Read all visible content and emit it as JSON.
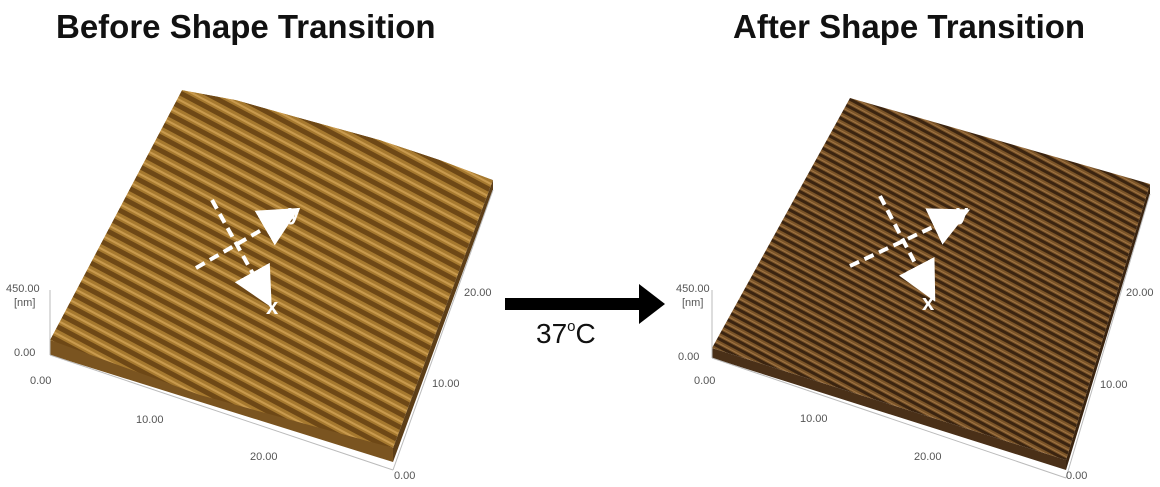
{
  "titles": {
    "before": "Before Shape Transition",
    "after": "After Shape Transition"
  },
  "transition": {
    "temperature": "37",
    "degree": "o",
    "unit": "C"
  },
  "before_panel": {
    "z_max": "450.00",
    "z_unit": "[nm]",
    "z_min": "0.00",
    "x_ticks": [
      "0.00",
      "10.00",
      "20.00"
    ],
    "y_ticks": [
      "0.00",
      "10.00",
      "20.00"
    ],
    "axes": {
      "x": "x",
      "y": "y"
    },
    "colors": {
      "surface": "#a6792f",
      "ridge": "#6e4816",
      "highlight": "#c99a4e"
    }
  },
  "after_panel": {
    "z_max": "450.00",
    "z_unit": "[nm]",
    "z_min": "0.00",
    "x_ticks": [
      "0.00",
      "10.00",
      "20.00"
    ],
    "y_ticks": [
      "0.00",
      "10.00",
      "20.00"
    ],
    "axes": {
      "x": "x",
      "y": "y"
    },
    "colors": {
      "surface": "#7a5428",
      "ridge": "#3b2410",
      "highlight": "#a07444"
    }
  }
}
